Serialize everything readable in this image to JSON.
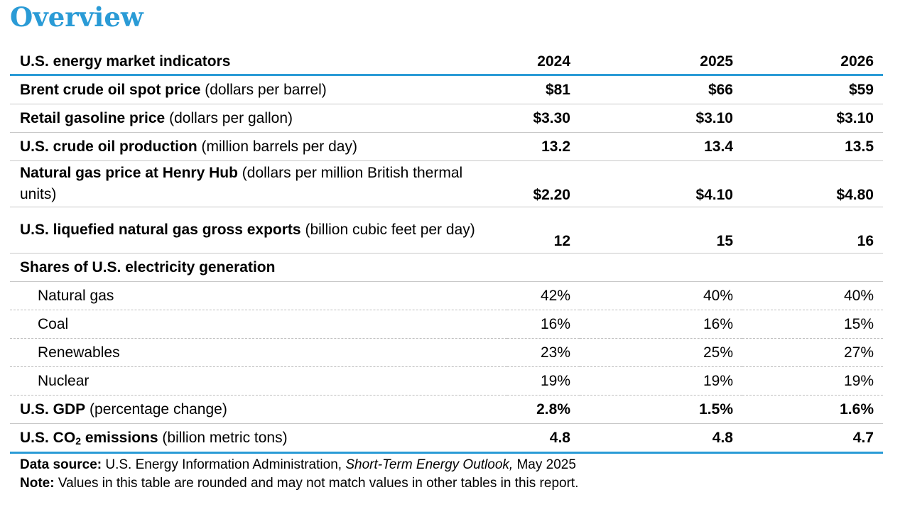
{
  "title": "Overview",
  "table": {
    "header": {
      "label": "U.S. energy market indicators",
      "years": [
        "2024",
        "2025",
        "2026"
      ]
    },
    "rows": [
      {
        "name": "Brent crude oil spot price",
        "unit": "(dollars per barrel)",
        "values": [
          "$81",
          "$66",
          "$59"
        ]
      },
      {
        "name": "Retail gasoline price",
        "unit": "(dollars per gallon)",
        "values": [
          "$3.30",
          "$3.10",
          "$3.10"
        ]
      },
      {
        "name": "U.S. crude oil production",
        "unit": "(million barrels per day)",
        "values": [
          "13.2",
          "13.4",
          "13.5"
        ]
      },
      {
        "name": "Natural gas price at Henry Hub",
        "unit": "(dollars per million British thermal units)",
        "values": [
          "$2.20",
          "$4.10",
          "$4.80"
        ]
      },
      {
        "name": "U.S. liquefied natural gas gross exports",
        "unit": "(billion cubic feet per day)",
        "values": [
          "12",
          "15",
          "16"
        ]
      },
      {
        "name": "Shares of U.S. electricity generation"
      },
      {
        "name": "Natural gas",
        "values": [
          "42%",
          "40%",
          "40%"
        ]
      },
      {
        "name": "Coal",
        "values": [
          "16%",
          "16%",
          "15%"
        ]
      },
      {
        "name": "Renewables",
        "values": [
          "23%",
          "25%",
          "27%"
        ]
      },
      {
        "name": "Nuclear",
        "values": [
          "19%",
          "19%",
          "19%"
        ]
      },
      {
        "name": "U.S. GDP",
        "unit": "(percentage change)",
        "values": [
          "2.8%",
          "1.5%",
          "1.6%"
        ]
      },
      {
        "name_prefix": "U.S. CO",
        "name_sub": "2",
        "name_suffix": " emissions",
        "unit": "(billion metric tons)",
        "values": [
          "4.8",
          "4.8",
          "4.7"
        ]
      }
    ]
  },
  "notes": {
    "source_label": "Data source:",
    "source_text": " U.S. Energy Information Administration, ",
    "source_title": "Short-Term Energy Outlook,",
    "source_date": " May 2025",
    "note_label": "Note:",
    "note_text": " Values in this table are rounded and may not match values in other tables in this report."
  }
}
